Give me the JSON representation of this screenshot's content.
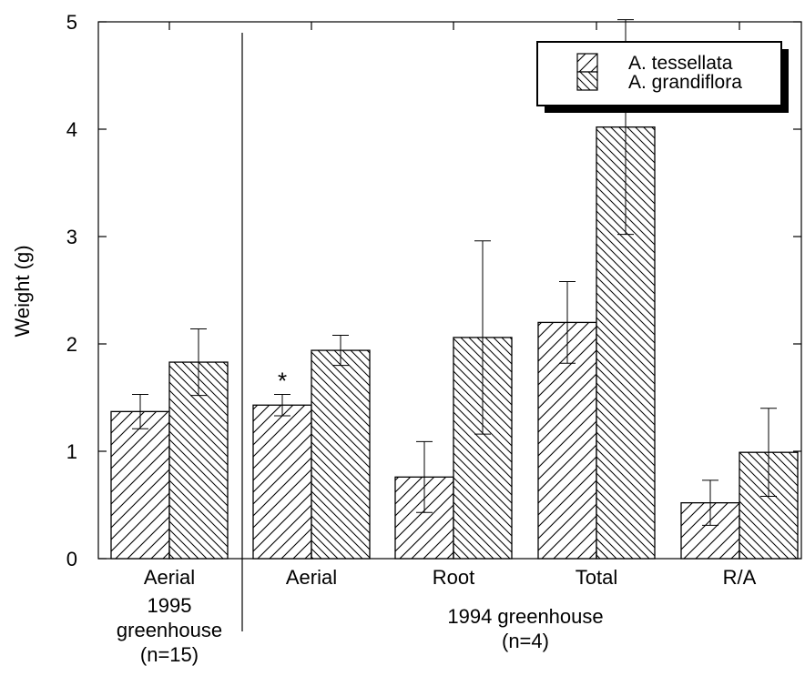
{
  "chart_data": {
    "type": "bar",
    "ylabel": "Weight (g)",
    "ylim": [
      0,
      5
    ],
    "yticks": [
      "0",
      "1",
      "2",
      "3",
      "4",
      "5"
    ],
    "grid": false,
    "legend_position": "top-right",
    "series": [
      {
        "name": "A. tessellata",
        "pattern": "forward-hatch",
        "values": [
          1.37,
          1.43,
          0.76,
          2.2,
          0.52
        ],
        "error": [
          0.16,
          0.1,
          0.33,
          0.38,
          0.21
        ]
      },
      {
        "name": "A. grandiflora",
        "pattern": "back-hatch",
        "values": [
          1.83,
          1.94,
          2.06,
          4.02,
          0.99
        ],
        "error": [
          0.31,
          0.14,
          0.9,
          1.0,
          0.41
        ]
      }
    ],
    "categories": [
      "Aerial",
      "Aerial",
      "Root",
      "Total",
      "R/A"
    ],
    "groups": [
      {
        "label_lines": [
          "1995",
          "greenhouse",
          "(n=15)"
        ]
      },
      {
        "label_lines": [
          "1994 greenhouse",
          "(n=4)"
        ]
      }
    ],
    "annotations": [
      {
        "text": "*",
        "category_index": 1,
        "series_index": 0
      }
    ],
    "colors": {
      "bar_fill": "#ffffff",
      "hatch": "#000000",
      "axis": "#000000"
    }
  }
}
